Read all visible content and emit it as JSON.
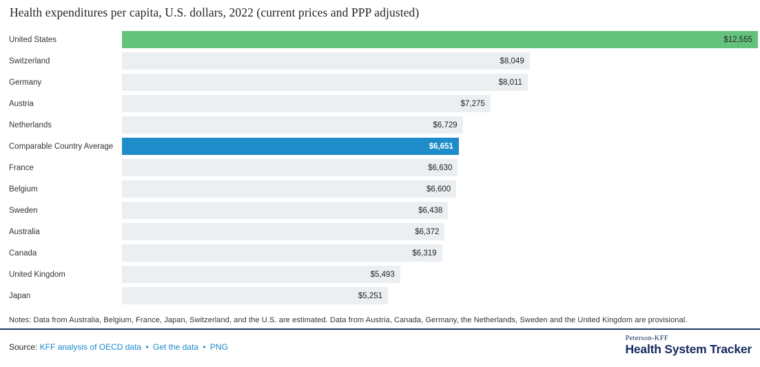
{
  "title": "Health expenditures per capita, U.S. dollars, 2022 (current prices and PPP adjusted)",
  "chart_data": {
    "type": "bar",
    "orientation": "horizontal",
    "title": "Health expenditures per capita, U.S. dollars, 2022 (current prices and PPP adjusted)",
    "xlabel": "",
    "ylabel": "",
    "xlim": [
      0,
      12555
    ],
    "grid": false,
    "legend": false,
    "bars": [
      {
        "category": "United States",
        "value": 12555,
        "label": "$12,555",
        "style": "green"
      },
      {
        "category": "Switzerland",
        "value": 8049,
        "label": "$8,049",
        "style": "gray"
      },
      {
        "category": "Germany",
        "value": 8011,
        "label": "$8,011",
        "style": "gray"
      },
      {
        "category": "Austria",
        "value": 7275,
        "label": "$7,275",
        "style": "gray"
      },
      {
        "category": "Netherlands",
        "value": 6729,
        "label": "$6,729",
        "style": "gray"
      },
      {
        "category": "Comparable Country Average",
        "value": 6651,
        "label": "$6,651",
        "style": "blue"
      },
      {
        "category": "France",
        "value": 6630,
        "label": "$6,630",
        "style": "gray"
      },
      {
        "category": "Belgium",
        "value": 6600,
        "label": "$6,600",
        "style": "gray"
      },
      {
        "category": "Sweden",
        "value": 6438,
        "label": "$6,438",
        "style": "gray"
      },
      {
        "category": "Australia",
        "value": 6372,
        "label": "$6,372",
        "style": "gray"
      },
      {
        "category": "Canada",
        "value": 6319,
        "label": "$6,319",
        "style": "gray"
      },
      {
        "category": "United Kingdom",
        "value": 5493,
        "label": "$5,493",
        "style": "gray"
      },
      {
        "category": "Japan",
        "value": 5251,
        "label": "$5,251",
        "style": "gray"
      }
    ]
  },
  "colors": {
    "green": "#65c27d",
    "blue": "#1e8cc9",
    "gray": "#ebeff2",
    "value_text": "#232323",
    "value_on_blue": "#ffffff",
    "link_blue": "#1789cd",
    "navy": "#14295e",
    "rule": "#1b3560"
  },
  "notes": "Notes: Data from Australia, Belgium, France, Japan, Switzerland, and the U.S. are estimated. Data from Austria, Canada, Germany, the Netherlands, Sweden and the United Kingdom are provisional.",
  "source": {
    "label": "Source:",
    "separator": "•",
    "links": [
      "KFF analysis of OECD data",
      "Get the data",
      "PNG"
    ]
  },
  "logo": {
    "top": "Peterson-KFF",
    "bottom": "Health System Tracker"
  }
}
